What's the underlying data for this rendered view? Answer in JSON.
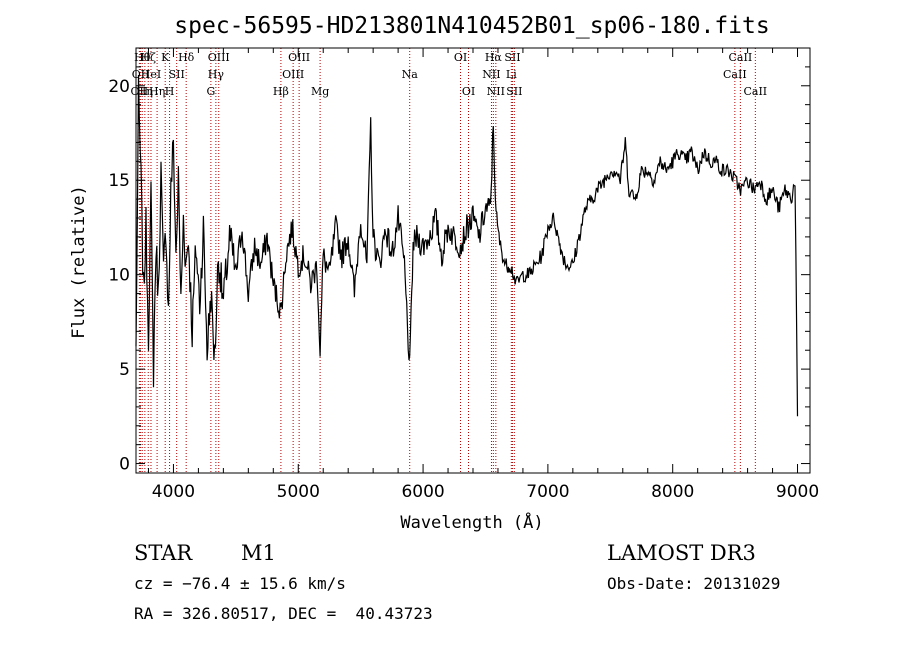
{
  "chart_data": {
    "type": "line",
    "title": "spec-56595-HD213801N410452B01_sp06-180.fits",
    "xlabel": "Wavelength (Å)",
    "ylabel": "Flux (relative)",
    "xlim": [
      3700,
      9100
    ],
    "ylim": [
      -0.5,
      22.0
    ],
    "xticks": [
      4000,
      5000,
      6000,
      7000,
      8000,
      9000
    ],
    "yticks": [
      0,
      5,
      10,
      15,
      20
    ],
    "series": [
      {
        "name": "spectrum",
        "x": [
          3700,
          3720,
          3740,
          3760,
          3780,
          3800,
          3820,
          3840,
          3860,
          3880,
          3900,
          3920,
          3940,
          3960,
          3980,
          4000,
          4020,
          4040,
          4060,
          4080,
          4100,
          4120,
          4150,
          4180,
          4210,
          4240,
          4270,
          4300,
          4330,
          4360,
          4400,
          4450,
          4500,
          4550,
          4600,
          4650,
          4700,
          4750,
          4800,
          4861,
          4900,
          4950,
          5000,
          5050,
          5100,
          5150,
          5175,
          5200,
          5250,
          5300,
          5350,
          5400,
          5450,
          5500,
          5550,
          5580,
          5600,
          5650,
          5700,
          5750,
          5800,
          5850,
          5893,
          5920,
          5950,
          6000,
          6050,
          6100,
          6150,
          6200,
          6250,
          6300,
          6350,
          6400,
          6450,
          6500,
          6540,
          6563,
          6585,
          6620,
          6660,
          6700,
          6750,
          6800,
          6850,
          6900,
          6950,
          7000,
          7050,
          7080,
          7120,
          7150,
          7200,
          7250,
          7300,
          7350,
          7400,
          7450,
          7500,
          7550,
          7580,
          7620,
          7650,
          7700,
          7750,
          7800,
          7850,
          7900,
          7950,
          8000,
          8050,
          8100,
          8150,
          8200,
          8250,
          8300,
          8350,
          8400,
          8450,
          8500,
          8550,
          8600,
          8650,
          8700,
          8750,
          8800,
          8850,
          8900,
          8950,
          8980,
          9000
        ],
        "y": [
          6.0,
          19.5,
          15.0,
          9.0,
          12.5,
          7.0,
          14.0,
          5.0,
          11.5,
          9.0,
          15.5,
          10.0,
          12.5,
          8.0,
          14.5,
          17.0,
          11.0,
          15.0,
          8.5,
          13.0,
          10.5,
          12.0,
          7.0,
          11.5,
          8.5,
          12.5,
          6.0,
          9.0,
          5.5,
          11.0,
          8.5,
          12.0,
          10.0,
          12.5,
          9.0,
          11.5,
          10.5,
          12.0,
          9.5,
          8.0,
          11.0,
          12.5,
          10.5,
          11.0,
          9.5,
          10.5,
          6.0,
          11.0,
          10.0,
          12.5,
          11.0,
          12.0,
          9.0,
          13.0,
          10.5,
          18.0,
          12.0,
          10.5,
          12.5,
          11.0,
          13.0,
          10.5,
          5.0,
          11.5,
          12.0,
          11.5,
          12.0,
          13.0,
          11.0,
          12.5,
          12.0,
          11.5,
          12.5,
          13.0,
          12.0,
          13.5,
          13.5,
          18.0,
          13.0,
          11.5,
          10.5,
          10.5,
          9.5,
          10.0,
          10.0,
          10.5,
          11.0,
          12.5,
          13.0,
          12.0,
          11.0,
          10.5,
          10.5,
          12.0,
          13.5,
          14.0,
          14.5,
          15.0,
          15.5,
          15.5,
          15.0,
          17.0,
          14.5,
          14.0,
          15.5,
          15.5,
          15.0,
          16.0,
          15.5,
          16.0,
          16.5,
          16.0,
          16.5,
          15.5,
          16.5,
          16.0,
          16.0,
          15.5,
          15.5,
          15.0,
          14.5,
          15.0,
          14.5,
          15.0,
          14.0,
          14.5,
          13.5,
          14.5,
          14.0,
          15.0,
          2.5
        ]
      }
    ],
    "line_markers": [
      {
        "wave": 3727,
        "label": "OII",
        "row": 2
      },
      {
        "wave": 3737,
        "label": "OII",
        "row": 1
      },
      {
        "wave": 3750,
        "label": "Hθ",
        "row": 0
      },
      {
        "wave": 3771,
        "label": "Hη",
        "row": 2
      },
      {
        "wave": 3798,
        "label": "Hζ",
        "row": 0
      },
      {
        "wave": 3820,
        "label": "HeI",
        "row": 1
      },
      {
        "wave": 3869,
        "label": "Hη",
        "row": 2
      },
      {
        "wave": 3934,
        "label": "K",
        "row": 0
      },
      {
        "wave": 3969,
        "label": "H",
        "row": 2
      },
      {
        "wave": 4026,
        "label": "SII",
        "row": 1
      },
      {
        "wave": 4102,
        "label": "Hδ",
        "row": 0
      },
      {
        "wave": 4300,
        "label": "G",
        "row": 2
      },
      {
        "wave": 4340,
        "label": "Hγ",
        "row": 1
      },
      {
        "wave": 4363,
        "label": "OIII",
        "row": 0
      },
      {
        "wave": 4861,
        "label": "Hβ",
        "row": 2
      },
      {
        "wave": 4959,
        "label": "OIII",
        "row": 1
      },
      {
        "wave": 5007,
        "label": "OIII",
        "row": 0
      },
      {
        "wave": 5175,
        "label": "Mg",
        "row": 2
      },
      {
        "wave": 5893,
        "label": "Na",
        "row": 1
      },
      {
        "wave": 6300,
        "label": "OI",
        "row": 0
      },
      {
        "wave": 6364,
        "label": "OI",
        "row": 2
      },
      {
        "wave": 6548,
        "label": "NII",
        "row": 1
      },
      {
        "wave": 6563,
        "label": "Hα",
        "row": 0
      },
      {
        "wave": 6583,
        "label": "NII",
        "row": 2
      },
      {
        "wave": 6707,
        "label": "Li",
        "row": 1
      },
      {
        "wave": 6716,
        "label": "SII",
        "row": 0
      },
      {
        "wave": 6731,
        "label": "SII",
        "row": 2
      },
      {
        "wave": 8498,
        "label": "CaII",
        "row": 1
      },
      {
        "wave": 8542,
        "label": "CaII",
        "row": 0
      },
      {
        "wave": 8662,
        "label": "CaII",
        "row": 2
      }
    ]
  },
  "info": {
    "object_class": "STAR",
    "subclass": "M1",
    "survey": "LAMOST DR3",
    "redshift": "cz = −76.4 ± 15.6 km/s",
    "obs_date": "Obs-Date: 20131029",
    "coords": "RA = 326.80517, DEC =  40.43723"
  }
}
